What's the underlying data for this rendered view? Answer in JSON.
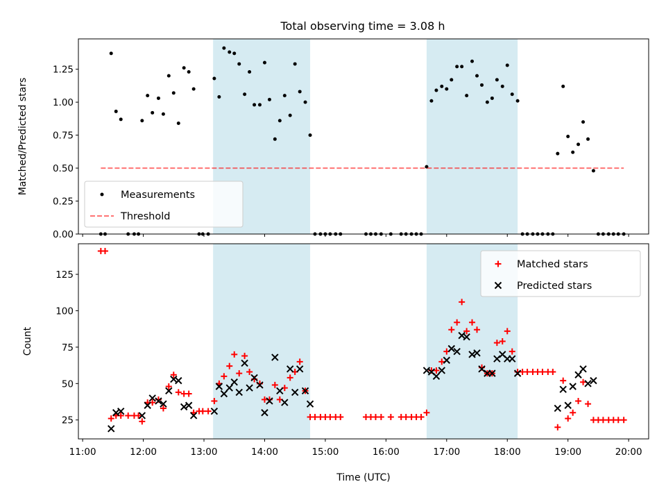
{
  "title": "Total observing time = 3.08 h",
  "colors": {
    "shade": "#add8e6",
    "threshold": "#ff0000",
    "matched": "#ff0000",
    "predicted": "#000000",
    "measurement": "#000000"
  },
  "chart_data": [
    {
      "type": "scatter",
      "title": "Total observing time = 3.08 h",
      "xlabel": "",
      "ylabel": "Matched/Predicted stars",
      "xlim": [
        10.93,
        20.33
      ],
      "ylim": [
        0,
        1.48
      ],
      "yticks": [
        0,
        0.25,
        0.5,
        0.75,
        1.0,
        1.25
      ],
      "ytick_labels": [
        "0.00",
        "0.25",
        "0.50",
        "0.75",
        "1.00",
        "1.25"
      ],
      "shaded_x_ranges": [
        [
          13.15,
          14.75
        ],
        [
          16.67,
          18.17
        ]
      ],
      "legend_position": "lower-left",
      "series": [
        {
          "name": "Measurements",
          "style": "dot",
          "points": [
            [
              11.3,
              0
            ],
            [
              11.37,
              0
            ],
            [
              11.47,
              1.37
            ],
            [
              11.55,
              0.93
            ],
            [
              11.63,
              0.87
            ],
            [
              11.75,
              0
            ],
            [
              11.85,
              0
            ],
            [
              11.92,
              0
            ],
            [
              11.98,
              0.86
            ],
            [
              12.07,
              1.05
            ],
            [
              12.15,
              0.92
            ],
            [
              12.25,
              1.03
            ],
            [
              12.33,
              0.91
            ],
            [
              12.42,
              1.2
            ],
            [
              12.5,
              1.07
            ],
            [
              12.58,
              0.84
            ],
            [
              12.67,
              1.26
            ],
            [
              12.75,
              1.23
            ],
            [
              12.83,
              1.1
            ],
            [
              12.92,
              0
            ],
            [
              12.98,
              0
            ],
            [
              13.07,
              0
            ],
            [
              13.17,
              1.18
            ],
            [
              13.25,
              1.04
            ],
            [
              13.33,
              1.41
            ],
            [
              13.42,
              1.38
            ],
            [
              13.5,
              1.37
            ],
            [
              13.58,
              1.29
            ],
            [
              13.67,
              1.06
            ],
            [
              13.75,
              1.23
            ],
            [
              13.83,
              0.98
            ],
            [
              13.92,
              0.98
            ],
            [
              14.0,
              1.3
            ],
            [
              14.08,
              1.02
            ],
            [
              14.17,
              0.72
            ],
            [
              14.25,
              0.86
            ],
            [
              14.33,
              1.05
            ],
            [
              14.42,
              0.9
            ],
            [
              14.5,
              1.29
            ],
            [
              14.58,
              1.08
            ],
            [
              14.67,
              1.0
            ],
            [
              14.75,
              0.75
            ],
            [
              14.83,
              0
            ],
            [
              14.92,
              0
            ],
            [
              15.0,
              0
            ],
            [
              15.08,
              0
            ],
            [
              15.17,
              0
            ],
            [
              15.25,
              0
            ],
            [
              15.67,
              0
            ],
            [
              15.75,
              0
            ],
            [
              15.83,
              0
            ],
            [
              15.92,
              0
            ],
            [
              16.08,
              0
            ],
            [
              16.25,
              0
            ],
            [
              16.33,
              0
            ],
            [
              16.42,
              0
            ],
            [
              16.5,
              0
            ],
            [
              16.58,
              0
            ],
            [
              16.67,
              0.51
            ],
            [
              16.75,
              1.01
            ],
            [
              16.83,
              1.09
            ],
            [
              16.92,
              1.12
            ],
            [
              17.0,
              1.1
            ],
            [
              17.08,
              1.17
            ],
            [
              17.17,
              1.27
            ],
            [
              17.25,
              1.27
            ],
            [
              17.33,
              1.05
            ],
            [
              17.42,
              1.31
            ],
            [
              17.5,
              1.2
            ],
            [
              17.58,
              1.13
            ],
            [
              17.67,
              1.0
            ],
            [
              17.75,
              1.03
            ],
            [
              17.83,
              1.17
            ],
            [
              17.92,
              1.12
            ],
            [
              18.0,
              1.28
            ],
            [
              18.08,
              1.06
            ],
            [
              18.17,
              1.01
            ],
            [
              18.25,
              0
            ],
            [
              18.33,
              0
            ],
            [
              18.42,
              0
            ],
            [
              18.5,
              0
            ],
            [
              18.58,
              0
            ],
            [
              18.67,
              0
            ],
            [
              18.75,
              0
            ],
            [
              18.83,
              0.61
            ],
            [
              18.92,
              1.12
            ],
            [
              19.0,
              0.74
            ],
            [
              19.08,
              0.62
            ],
            [
              19.17,
              0.68
            ],
            [
              19.25,
              0.85
            ],
            [
              19.33,
              0.72
            ],
            [
              19.42,
              0.48
            ],
            [
              19.5,
              0
            ],
            [
              19.58,
              0
            ],
            [
              19.67,
              0
            ],
            [
              19.75,
              0
            ],
            [
              19.83,
              0
            ],
            [
              19.92,
              0
            ]
          ]
        },
        {
          "name": "Threshold",
          "style": "dashed-line",
          "points": [
            [
              11.3,
              0.5
            ],
            [
              19.92,
              0.5
            ]
          ]
        }
      ]
    },
    {
      "type": "scatter",
      "title": "",
      "xlabel": "Time (UTC)",
      "ylabel": "Count",
      "xlim": [
        10.93,
        20.33
      ],
      "ylim": [
        12,
        146
      ],
      "yticks": [
        25,
        50,
        75,
        100,
        125
      ],
      "ytick_labels": [
        "25",
        "50",
        "75",
        "100",
        "125"
      ],
      "xticks": [
        11,
        12,
        13,
        14,
        15,
        16,
        17,
        18,
        19,
        20
      ],
      "xtick_labels": [
        "11:00",
        "12:00",
        "13:00",
        "14:00",
        "15:00",
        "16:00",
        "17:00",
        "18:00",
        "19:00",
        "20:00"
      ],
      "shaded_x_ranges": [
        [
          13.15,
          14.75
        ],
        [
          16.67,
          18.17
        ]
      ],
      "legend_position": "top-right",
      "series": [
        {
          "name": "Matched stars",
          "style": "plus",
          "points": [
            [
              11.3,
              141
            ],
            [
              11.37,
              141
            ],
            [
              11.47,
              26
            ],
            [
              11.55,
              28
            ],
            [
              11.63,
              28
            ],
            [
              11.75,
              28
            ],
            [
              11.85,
              28
            ],
            [
              11.92,
              28
            ],
            [
              11.98,
              24
            ],
            [
              12.07,
              37
            ],
            [
              12.15,
              37
            ],
            [
              12.25,
              39
            ],
            [
              12.33,
              33
            ],
            [
              12.42,
              48
            ],
            [
              12.5,
              56
            ],
            [
              12.58,
              44
            ],
            [
              12.67,
              43
            ],
            [
              12.75,
              43
            ],
            [
              12.83,
              30
            ],
            [
              12.92,
              31
            ],
            [
              12.98,
              31
            ],
            [
              13.07,
              31
            ],
            [
              13.17,
              38
            ],
            [
              13.25,
              50
            ],
            [
              13.33,
              55
            ],
            [
              13.42,
              62
            ],
            [
              13.5,
              70
            ],
            [
              13.58,
              57
            ],
            [
              13.67,
              69
            ],
            [
              13.75,
              58
            ],
            [
              13.83,
              53
            ],
            [
              13.92,
              50
            ],
            [
              14.0,
              39
            ],
            [
              14.08,
              39
            ],
            [
              14.17,
              49
            ],
            [
              14.25,
              39
            ],
            [
              14.33,
              47
            ],
            [
              14.42,
              54
            ],
            [
              14.5,
              58
            ],
            [
              14.58,
              65
            ],
            [
              14.67,
              45
            ],
            [
              14.75,
              27
            ],
            [
              14.83,
              27
            ],
            [
              14.92,
              27
            ],
            [
              15.0,
              27
            ],
            [
              15.08,
              27
            ],
            [
              15.17,
              27
            ],
            [
              15.25,
              27
            ],
            [
              15.67,
              27
            ],
            [
              15.75,
              27
            ],
            [
              15.83,
              27
            ],
            [
              15.92,
              27
            ],
            [
              16.08,
              27
            ],
            [
              16.25,
              27
            ],
            [
              16.33,
              27
            ],
            [
              16.42,
              27
            ],
            [
              16.5,
              27
            ],
            [
              16.58,
              27
            ],
            [
              16.67,
              30
            ],
            [
              16.75,
              59
            ],
            [
              16.83,
              59
            ],
            [
              16.92,
              65
            ],
            [
              17.0,
              72
            ],
            [
              17.08,
              87
            ],
            [
              17.17,
              92
            ],
            [
              17.25,
              106
            ],
            [
              17.33,
              86
            ],
            [
              17.42,
              92
            ],
            [
              17.5,
              87
            ],
            [
              17.58,
              61
            ],
            [
              17.67,
              57
            ],
            [
              17.75,
              57
            ],
            [
              17.83,
              78
            ],
            [
              17.92,
              79
            ],
            [
              18.0,
              86
            ],
            [
              18.08,
              72
            ],
            [
              18.17,
              58
            ],
            [
              18.25,
              58
            ],
            [
              18.33,
              58
            ],
            [
              18.42,
              58
            ],
            [
              18.5,
              58
            ],
            [
              18.58,
              58
            ],
            [
              18.67,
              58
            ],
            [
              18.75,
              58
            ],
            [
              18.83,
              20
            ],
            [
              18.92,
              52
            ],
            [
              19.0,
              26
            ],
            [
              19.08,
              30
            ],
            [
              19.17,
              38
            ],
            [
              19.25,
              51
            ],
            [
              19.33,
              36
            ],
            [
              19.42,
              25
            ],
            [
              19.5,
              25
            ],
            [
              19.58,
              25
            ],
            [
              19.67,
              25
            ],
            [
              19.75,
              25
            ],
            [
              19.83,
              25
            ],
            [
              19.92,
              25
            ]
          ]
        },
        {
          "name": "Predicted stars",
          "style": "x",
          "points": [
            [
              11.47,
              19
            ],
            [
              11.55,
              30
            ],
            [
              11.63,
              31
            ],
            [
              11.98,
              28
            ],
            [
              12.07,
              35
            ],
            [
              12.15,
              40
            ],
            [
              12.25,
              38
            ],
            [
              12.33,
              36
            ],
            [
              12.42,
              45
            ],
            [
              12.5,
              53
            ],
            [
              12.58,
              52
            ],
            [
              12.67,
              34
            ],
            [
              12.75,
              35
            ],
            [
              12.83,
              28
            ],
            [
              13.17,
              31
            ],
            [
              13.25,
              48
            ],
            [
              13.33,
              43
            ],
            [
              13.42,
              47
            ],
            [
              13.5,
              51
            ],
            [
              13.58,
              44
            ],
            [
              13.67,
              64
            ],
            [
              13.75,
              47
            ],
            [
              13.83,
              54
            ],
            [
              13.92,
              49
            ],
            [
              14.0,
              30
            ],
            [
              14.08,
              38
            ],
            [
              14.17,
              68
            ],
            [
              14.25,
              45
            ],
            [
              14.33,
              37
            ],
            [
              14.42,
              60
            ],
            [
              14.5,
              44
            ],
            [
              14.58,
              60
            ],
            [
              14.67,
              45
            ],
            [
              14.75,
              36
            ],
            [
              16.67,
              59
            ],
            [
              16.75,
              58
            ],
            [
              16.83,
              55
            ],
            [
              16.92,
              59
            ],
            [
              17.0,
              66
            ],
            [
              17.08,
              74
            ],
            [
              17.17,
              72
            ],
            [
              17.25,
              83
            ],
            [
              17.33,
              82
            ],
            [
              17.42,
              70
            ],
            [
              17.5,
              71
            ],
            [
              17.58,
              60
            ],
            [
              17.67,
              57
            ],
            [
              17.75,
              57
            ],
            [
              17.83,
              67
            ],
            [
              17.92,
              70
            ],
            [
              18.0,
              67
            ],
            [
              18.08,
              67
            ],
            [
              18.17,
              57
            ],
            [
              18.83,
              33
            ],
            [
              18.92,
              46
            ],
            [
              19.0,
              35
            ],
            [
              19.08,
              48
            ],
            [
              19.17,
              56
            ],
            [
              19.25,
              60
            ],
            [
              19.33,
              50
            ],
            [
              19.42,
              52
            ]
          ]
        }
      ]
    }
  ]
}
